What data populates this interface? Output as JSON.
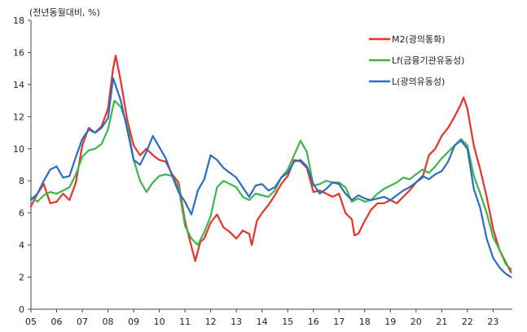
{
  "chart_data": {
    "type": "line",
    "unit_label": "(전년동월대비, %)",
    "title": "",
    "xlabel": "",
    "ylabel": "",
    "xlim": [
      2005.0,
      2023.75
    ],
    "ylim": [
      0,
      18
    ],
    "y_ticks": [
      0,
      2,
      4,
      6,
      8,
      10,
      12,
      14,
      16,
      18
    ],
    "x_tick_labels": [
      "05",
      "06",
      "07",
      "08",
      "09",
      "10",
      "11",
      "12",
      "13",
      "14",
      "15",
      "16",
      "17",
      "18",
      "19",
      "20",
      "21",
      "22",
      "23"
    ],
    "x_tick_positions": [
      2005,
      2006,
      2007,
      2008,
      2009,
      2010,
      2011,
      2012,
      2013,
      2014,
      2015,
      2016,
      2017,
      2018,
      2019,
      2020,
      2021,
      2022,
      2023
    ],
    "grid": false,
    "legend_position": "top-right",
    "series": [
      {
        "name": "M2(광의통화)",
        "color": "#e8322b",
        "points": [
          [
            2005.0,
            6.4
          ],
          [
            2005.25,
            7.2
          ],
          [
            2005.5,
            7.8
          ],
          [
            2005.75,
            6.6
          ],
          [
            2006.0,
            6.7
          ],
          [
            2006.25,
            7.2
          ],
          [
            2006.5,
            6.8
          ],
          [
            2006.75,
            7.9
          ],
          [
            2007.0,
            10.2
          ],
          [
            2007.25,
            11.3
          ],
          [
            2007.5,
            11.0
          ],
          [
            2007.75,
            11.4
          ],
          [
            2008.0,
            12.5
          ],
          [
            2008.2,
            15.0
          ],
          [
            2008.3,
            15.8
          ],
          [
            2008.5,
            14.2
          ],
          [
            2008.75,
            11.8
          ],
          [
            2009.0,
            10.2
          ],
          [
            2009.25,
            9.6
          ],
          [
            2009.5,
            10.0
          ],
          [
            2009.75,
            9.6
          ],
          [
            2010.0,
            9.3
          ],
          [
            2010.25,
            9.2
          ],
          [
            2010.5,
            8.4
          ],
          [
            2010.75,
            7.9
          ],
          [
            2011.0,
            5.5
          ],
          [
            2011.25,
            3.9
          ],
          [
            2011.4,
            3.0
          ],
          [
            2011.6,
            4.2
          ],
          [
            2011.75,
            4.4
          ],
          [
            2012.0,
            5.4
          ],
          [
            2012.25,
            5.9
          ],
          [
            2012.5,
            5.1
          ],
          [
            2012.75,
            4.8
          ],
          [
            2013.0,
            4.4
          ],
          [
            2013.25,
            4.9
          ],
          [
            2013.5,
            4.7
          ],
          [
            2013.6,
            4.0
          ],
          [
            2013.8,
            5.5
          ],
          [
            2014.0,
            6.0
          ],
          [
            2014.25,
            6.5
          ],
          [
            2014.5,
            7.1
          ],
          [
            2014.75,
            7.8
          ],
          [
            2015.0,
            8.3
          ],
          [
            2015.25,
            9.3
          ],
          [
            2015.5,
            9.2
          ],
          [
            2015.75,
            8.8
          ],
          [
            2016.0,
            7.3
          ],
          [
            2016.25,
            7.4
          ],
          [
            2016.5,
            7.2
          ],
          [
            2016.75,
            7.0
          ],
          [
            2017.0,
            7.2
          ],
          [
            2017.25,
            6.0
          ],
          [
            2017.5,
            5.6
          ],
          [
            2017.6,
            4.6
          ],
          [
            2017.75,
            4.7
          ],
          [
            2018.0,
            5.5
          ],
          [
            2018.25,
            6.2
          ],
          [
            2018.5,
            6.6
          ],
          [
            2018.75,
            6.6
          ],
          [
            2019.0,
            6.8
          ],
          [
            2019.25,
            6.6
          ],
          [
            2019.5,
            7.0
          ],
          [
            2019.75,
            7.4
          ],
          [
            2020.0,
            7.9
          ],
          [
            2020.25,
            8.2
          ],
          [
            2020.5,
            9.6
          ],
          [
            2020.75,
            10.0
          ],
          [
            2021.0,
            10.8
          ],
          [
            2021.25,
            11.3
          ],
          [
            2021.5,
            12.0
          ],
          [
            2021.75,
            12.8
          ],
          [
            2021.85,
            13.2
          ],
          [
            2022.0,
            12.5
          ],
          [
            2022.25,
            10.2
          ],
          [
            2022.5,
            8.7
          ],
          [
            2022.75,
            7.0
          ],
          [
            2023.0,
            5.0
          ],
          [
            2023.25,
            3.7
          ],
          [
            2023.5,
            2.9
          ],
          [
            2023.7,
            2.3
          ]
        ]
      },
      {
        "name": "Lf(금융기관유동성)",
        "color": "#3db54a",
        "points": [
          [
            2005.0,
            7.0
          ],
          [
            2005.25,
            6.7
          ],
          [
            2005.5,
            7.1
          ],
          [
            2005.75,
            7.3
          ],
          [
            2006.0,
            7.2
          ],
          [
            2006.25,
            7.4
          ],
          [
            2006.5,
            7.6
          ],
          [
            2006.75,
            8.4
          ],
          [
            2007.0,
            9.5
          ],
          [
            2007.25,
            9.9
          ],
          [
            2007.5,
            10.0
          ],
          [
            2007.75,
            10.3
          ],
          [
            2008.0,
            11.2
          ],
          [
            2008.25,
            13.0
          ],
          [
            2008.5,
            12.6
          ],
          [
            2008.75,
            11.5
          ],
          [
            2009.0,
            9.3
          ],
          [
            2009.25,
            8.0
          ],
          [
            2009.5,
            7.3
          ],
          [
            2009.75,
            7.9
          ],
          [
            2010.0,
            8.3
          ],
          [
            2010.25,
            8.4
          ],
          [
            2010.5,
            8.3
          ],
          [
            2010.75,
            7.6
          ],
          [
            2011.0,
            5.2
          ],
          [
            2011.25,
            4.4
          ],
          [
            2011.5,
            4.0
          ],
          [
            2011.75,
            4.8
          ],
          [
            2012.0,
            5.8
          ],
          [
            2012.25,
            7.6
          ],
          [
            2012.5,
            8.0
          ],
          [
            2012.75,
            7.8
          ],
          [
            2013.0,
            7.6
          ],
          [
            2013.25,
            7.0
          ],
          [
            2013.5,
            6.8
          ],
          [
            2013.75,
            7.2
          ],
          [
            2014.0,
            7.1
          ],
          [
            2014.25,
            7.0
          ],
          [
            2014.5,
            7.4
          ],
          [
            2014.75,
            8.2
          ],
          [
            2015.0,
            8.7
          ],
          [
            2015.25,
            9.6
          ],
          [
            2015.5,
            10.5
          ],
          [
            2015.75,
            9.8
          ],
          [
            2016.0,
            7.7
          ],
          [
            2016.25,
            7.8
          ],
          [
            2016.5,
            8.0
          ],
          [
            2016.75,
            7.9
          ],
          [
            2017.0,
            7.9
          ],
          [
            2017.25,
            7.6
          ],
          [
            2017.5,
            6.7
          ],
          [
            2017.75,
            6.9
          ],
          [
            2018.0,
            6.7
          ],
          [
            2018.25,
            6.8
          ],
          [
            2018.5,
            7.2
          ],
          [
            2018.75,
            7.5
          ],
          [
            2019.0,
            7.7
          ],
          [
            2019.25,
            7.9
          ],
          [
            2019.5,
            8.2
          ],
          [
            2019.75,
            8.1
          ],
          [
            2020.0,
            8.4
          ],
          [
            2020.25,
            8.7
          ],
          [
            2020.5,
            8.5
          ],
          [
            2020.75,
            8.9
          ],
          [
            2021.0,
            9.4
          ],
          [
            2021.25,
            9.8
          ],
          [
            2021.5,
            10.2
          ],
          [
            2021.75,
            10.6
          ],
          [
            2022.0,
            10.2
          ],
          [
            2022.25,
            8.3
          ],
          [
            2022.5,
            7.2
          ],
          [
            2022.75,
            6.0
          ],
          [
            2023.0,
            4.5
          ],
          [
            2023.25,
            3.7
          ],
          [
            2023.5,
            2.8
          ],
          [
            2023.7,
            2.5
          ]
        ]
      },
      {
        "name": "L(광의유동성)",
        "color": "#2b6cc4",
        "points": [
          [
            2005.0,
            6.8
          ],
          [
            2005.25,
            7.2
          ],
          [
            2005.5,
            8.0
          ],
          [
            2005.75,
            8.7
          ],
          [
            2006.0,
            8.9
          ],
          [
            2006.25,
            8.2
          ],
          [
            2006.5,
            8.3
          ],
          [
            2006.75,
            9.5
          ],
          [
            2007.0,
            10.6
          ],
          [
            2007.25,
            11.2
          ],
          [
            2007.5,
            11.0
          ],
          [
            2007.75,
            11.3
          ],
          [
            2008.0,
            11.9
          ],
          [
            2008.2,
            14.4
          ],
          [
            2008.5,
            13.0
          ],
          [
            2008.75,
            11.2
          ],
          [
            2009.0,
            9.3
          ],
          [
            2009.25,
            9.0
          ],
          [
            2009.5,
            9.8
          ],
          [
            2009.75,
            10.8
          ],
          [
            2010.0,
            10.1
          ],
          [
            2010.25,
            9.4
          ],
          [
            2010.5,
            8.3
          ],
          [
            2010.75,
            7.3
          ],
          [
            2011.0,
            6.7
          ],
          [
            2011.25,
            5.9
          ],
          [
            2011.5,
            7.4
          ],
          [
            2011.75,
            8.1
          ],
          [
            2012.0,
            9.6
          ],
          [
            2012.25,
            9.3
          ],
          [
            2012.5,
            8.8
          ],
          [
            2012.75,
            8.5
          ],
          [
            2013.0,
            8.2
          ],
          [
            2013.25,
            7.6
          ],
          [
            2013.5,
            7.0
          ],
          [
            2013.75,
            7.7
          ],
          [
            2014.0,
            7.8
          ],
          [
            2014.25,
            7.4
          ],
          [
            2014.5,
            7.6
          ],
          [
            2014.75,
            8.2
          ],
          [
            2015.0,
            8.5
          ],
          [
            2015.25,
            9.2
          ],
          [
            2015.5,
            9.3
          ],
          [
            2015.75,
            8.9
          ],
          [
            2016.0,
            7.8
          ],
          [
            2016.25,
            7.2
          ],
          [
            2016.5,
            7.5
          ],
          [
            2016.75,
            7.9
          ],
          [
            2017.0,
            7.8
          ],
          [
            2017.25,
            7.2
          ],
          [
            2017.5,
            6.8
          ],
          [
            2017.75,
            7.1
          ],
          [
            2018.0,
            6.9
          ],
          [
            2018.25,
            6.8
          ],
          [
            2018.5,
            6.9
          ],
          [
            2018.75,
            7.0
          ],
          [
            2019.0,
            6.8
          ],
          [
            2019.25,
            7.1
          ],
          [
            2019.5,
            7.4
          ],
          [
            2019.75,
            7.6
          ],
          [
            2020.0,
            7.9
          ],
          [
            2020.25,
            8.3
          ],
          [
            2020.5,
            8.1
          ],
          [
            2020.75,
            8.4
          ],
          [
            2021.0,
            8.6
          ],
          [
            2021.25,
            9.2
          ],
          [
            2021.5,
            10.2
          ],
          [
            2021.75,
            10.5
          ],
          [
            2022.0,
            10.0
          ],
          [
            2022.25,
            7.5
          ],
          [
            2022.5,
            6.3
          ],
          [
            2022.75,
            4.4
          ],
          [
            2023.0,
            3.2
          ],
          [
            2023.25,
            2.6
          ],
          [
            2023.5,
            2.2
          ],
          [
            2023.7,
            2.0
          ]
        ]
      }
    ]
  }
}
